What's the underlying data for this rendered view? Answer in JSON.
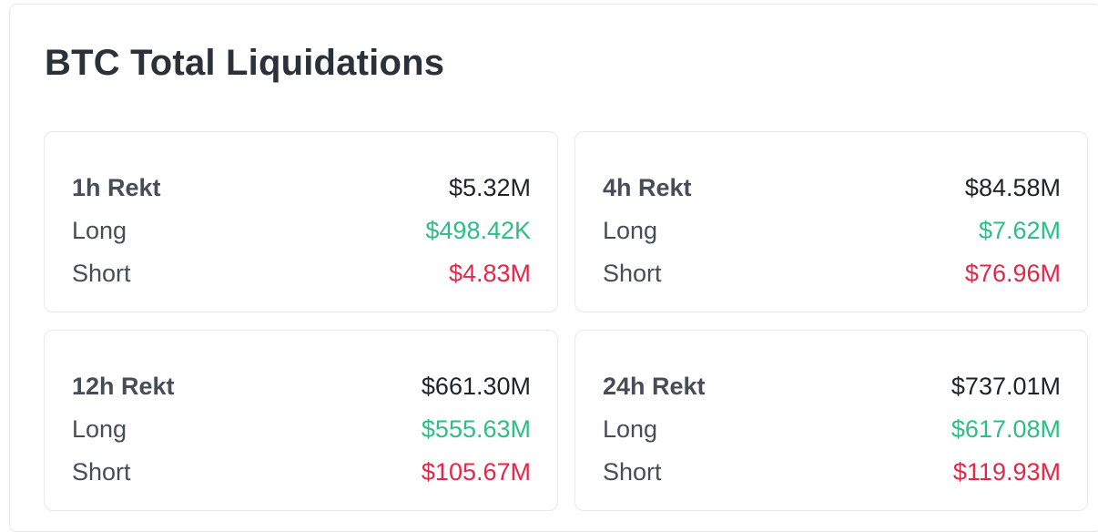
{
  "title": "BTC Total Liquidations",
  "cards": [
    {
      "period_label": "1h Rekt",
      "total": "$5.32M",
      "long_label": "Long",
      "long_value": "$498.42K",
      "short_label": "Short",
      "short_value": "$4.83M"
    },
    {
      "period_label": "4h Rekt",
      "total": "$84.58M",
      "long_label": "Long",
      "long_value": "$7.62M",
      "short_label": "Short",
      "short_value": "$76.96M"
    },
    {
      "period_label": "12h Rekt",
      "total": "$661.30M",
      "long_label": "Long",
      "long_value": "$555.63M",
      "short_label": "Short",
      "short_value": "$105.67M"
    },
    {
      "period_label": "24h Rekt",
      "total": "$737.01M",
      "long_label": "Long",
      "long_value": "$617.08M",
      "short_label": "Short",
      "short_value": "$119.93M"
    }
  ],
  "colors": {
    "long": "#2ebd85",
    "short": "#e0294a",
    "text_primary": "#1e2329",
    "text_secondary": "#474d57"
  }
}
